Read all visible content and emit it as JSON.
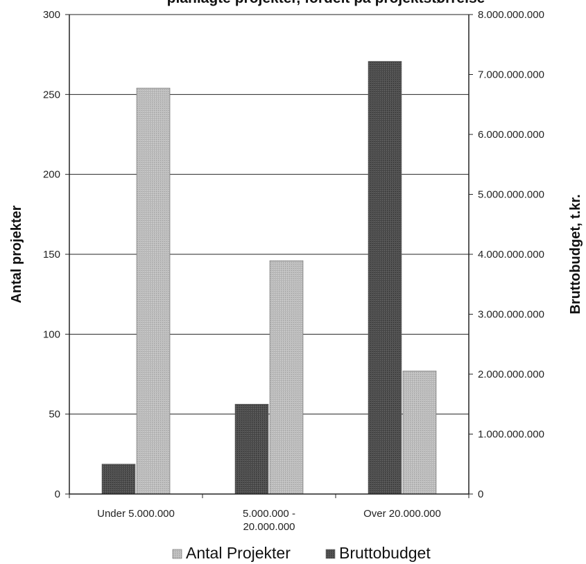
{
  "chart_data": {
    "type": "bar",
    "title": "planlagte projekter, fordelt på projektstørrelse",
    "categories": [
      "Under 5.000.000",
      "5.000.000 - 20.000.000",
      "Over 20.000.000"
    ],
    "category_lines": [
      [
        "Under 5.000.000"
      ],
      [
        "5.000.000 -",
        "20.000.000"
      ],
      [
        "Over 20.000.000"
      ]
    ],
    "series": [
      {
        "name": "Bruttobudget",
        "axis": "right",
        "color": "#4d4d4d",
        "values": [
          500000000,
          1500000000,
          7220000000
        ]
      },
      {
        "name": "Antal Projekter",
        "axis": "left",
        "color": "#b8b8b8",
        "values": [
          254,
          146,
          77
        ]
      }
    ],
    "legend_order": [
      "Antal Projekter",
      "Bruttobudget"
    ],
    "ylabel": "Antal projekter",
    "y2label": "Bruttobudget, t.kr.",
    "ylim": [
      0,
      300
    ],
    "y2lim": [
      0,
      8000000000
    ],
    "yticks": [
      "0",
      "50",
      "100",
      "150",
      "200",
      "250",
      "300"
    ],
    "y2ticks": [
      "0",
      "1.000.000.000",
      "2.000.000.000",
      "3.000.000.000",
      "4.000.000.000",
      "5.000.000.000",
      "6.000.000.000",
      "7.000.000.000",
      "8.000.000.000"
    ],
    "grid": true,
    "legend_position": "bottom"
  }
}
